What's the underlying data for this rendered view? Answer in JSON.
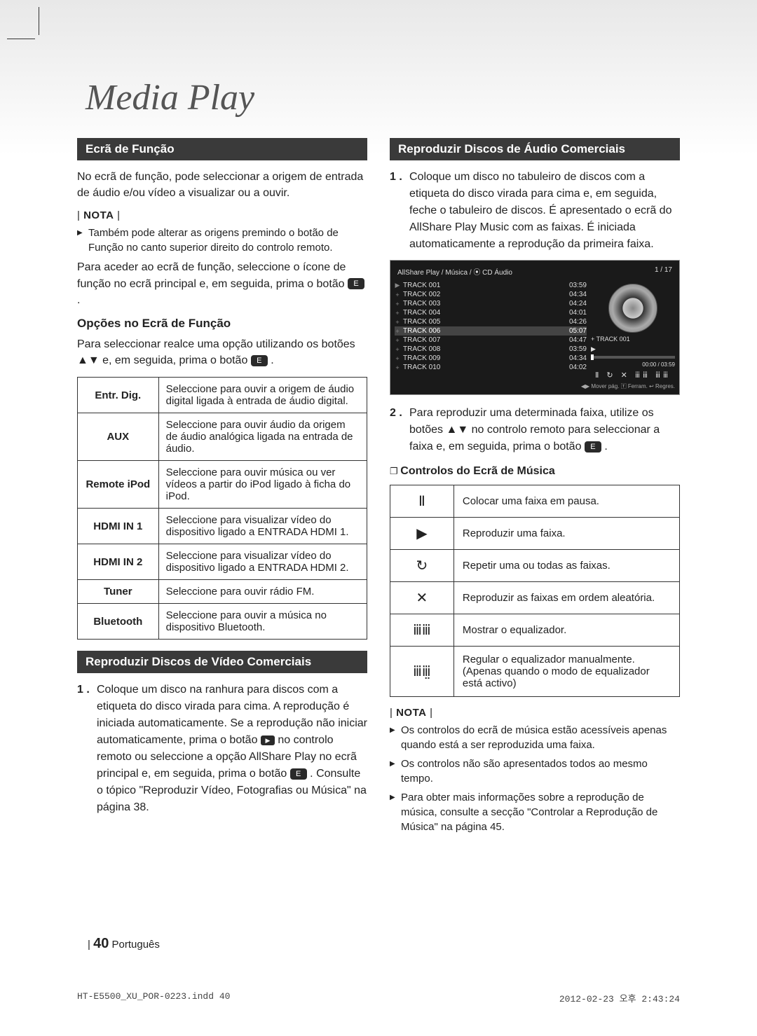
{
  "page_title": "Media Play",
  "left": {
    "header1": "Ecrã de Função",
    "intro": "No ecrã de função, pode seleccionar a origem de entrada de áudio e/ou vídeo a visualizar ou a ouvir.",
    "nota_label": "NOTA",
    "nota1": "Também pode alterar as origens premindo o botão de Função no canto superior direito do controlo remoto.",
    "para2_a": "Para aceder ao ecrã de função, seleccione o ícone de função no ecrã principal e, em seguida, prima o botão ",
    "para2_b": ".",
    "enter_glyph": "E",
    "sub1": "Opções no Ecrã de Função",
    "sub1_desc_a": "Para seleccionar realce uma opção utilizando os botões ▲▼ e, em seguida, prima o botão ",
    "sub1_desc_b": ".",
    "options": [
      {
        "label": "Entr. Dig.",
        "desc": "Seleccione para ouvir a origem de áudio digital ligada à entrada de áudio digital."
      },
      {
        "label": "AUX",
        "desc": "Seleccione para ouvir áudio da origem de áudio analógica ligada na entrada de áudio."
      },
      {
        "label": "Remote iPod",
        "desc": "Seleccione para ouvir música ou ver vídeos a partir do iPod ligado à ficha do iPod."
      },
      {
        "label": "HDMI IN 1",
        "desc": "Seleccione para visualizar vídeo do dispositivo ligado a ENTRADA HDMI 1."
      },
      {
        "label": "HDMI IN 2",
        "desc": "Seleccione para visualizar vídeo do dispositivo ligado a ENTRADA HDMI 2."
      },
      {
        "label": "Tuner",
        "desc": "Seleccione para ouvir rádio FM."
      },
      {
        "label": "Bluetooth",
        "desc": "Seleccione para ouvir a música no dispositivo Bluetooth."
      }
    ],
    "header2": "Reproduzir Discos de Vídeo Comerciais",
    "play_glyph": "▶",
    "step1_num": "1 .",
    "step1_a": "Coloque um disco na ranhura para discos com a etiqueta do disco virada para cima. A reprodução é iniciada automaticamente. Se a reprodução não iniciar automaticamente, prima o botão ",
    "step1_b": " no controlo remoto ou seleccione a opção AllShare Play no ecrã principal e, em seguida, prima o botão ",
    "step1_c": ". Consulte o tópico \"Reproduzir Vídeo, Fotografias ou Música\" na página 38."
  },
  "right": {
    "header1": "Reproduzir Discos de Áudio Comerciais",
    "step1_num": "1 .",
    "step1": "Coloque um disco no tabuleiro de discos com a etiqueta do disco virada para cima e, em seguida, feche o tabuleiro de discos. É apresentado o ecrã do AllShare Play Music com as faixas. É iniciada automaticamente a reprodução da primeira faixa.",
    "allshare": {
      "breadcrumb": "AllShare Play / Música /  ⦿  CD Áudio",
      "counter": "1 / 17",
      "tracks": [
        {
          "name": "TRACK 001",
          "time": "03:59",
          "playing": true
        },
        {
          "name": "TRACK 002",
          "time": "04:34"
        },
        {
          "name": "TRACK 003",
          "time": "04:24"
        },
        {
          "name": "TRACK 004",
          "time": "04:01"
        },
        {
          "name": "TRACK 005",
          "time": "04:26"
        },
        {
          "name": "TRACK 006",
          "time": "05:07",
          "active": true
        },
        {
          "name": "TRACK 007",
          "time": "04:47"
        },
        {
          "name": "TRACK 008",
          "time": "03:59"
        },
        {
          "name": "TRACK 009",
          "time": "04:34"
        },
        {
          "name": "TRACK 010",
          "time": "04:02"
        }
      ],
      "now_label": "+ TRACK 001",
      "play_indicator": "▶",
      "time_display": "00:00 / 03:59",
      "ctrl_glyphs": "Ⅱ ↻ ✕ ⅲⅲ ⅲⅲ",
      "footer_hint": "◀▶ Mover pág.  🅃 Ferram.  ↩ Regres."
    },
    "step2_num": "2 .",
    "step2_a": "Para reproduzir uma determinada faixa, utilize os botões ▲▼ no controlo remoto para seleccionar a faixa e, em seguida, prima o botão ",
    "step2_b": ".",
    "enter_glyph": "E",
    "sub1": "Controlos do Ecrã de Música",
    "controls": [
      {
        "icon": "Ⅱ",
        "desc": "Colocar uma faixa em pausa."
      },
      {
        "icon": "▶",
        "desc": "Reproduzir uma faixa."
      },
      {
        "icon": "↻",
        "desc": "Repetir uma ou todas as faixas."
      },
      {
        "icon": "✕",
        "desc": "Reproduzir as faixas em ordem aleatória."
      },
      {
        "icon": "ⅲⅲ",
        "desc": "Mostrar o equalizador."
      },
      {
        "icon": "ⅲⅲ̤",
        "desc": "Regular o equalizador manualmente. (Apenas quando o modo de equalizador está activo)"
      }
    ],
    "nota_label": "NOTA",
    "notes": [
      "Os controlos do ecrã de música estão acessíveis apenas quando está a ser reproduzida uma faixa.",
      "Os controlos não são apresentados todos ao mesmo tempo.",
      "Para obter mais informações sobre a reprodução de música, consulte a secção \"Controlar a Reprodução de Música\" na página 45."
    ]
  },
  "footer": {
    "bar": "|",
    "page_num": "40",
    "lang": "Português"
  },
  "print": {
    "file": "HT-E5500_XU_POR-0223.indd   40",
    "date": "2012-02-23   오후 2:43:24"
  }
}
